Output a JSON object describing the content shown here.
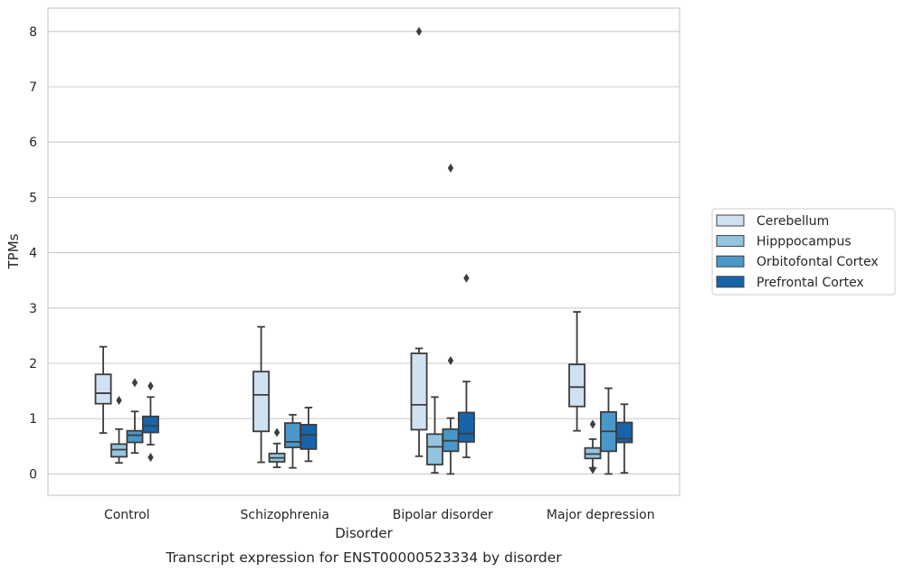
{
  "chart_data": {
    "type": "box",
    "xlabel": "Disorder",
    "ylabel": "TPMs",
    "caption": "Transcript expression for ENST00000523334 by disorder",
    "ylim": [
      -0.4,
      8.4
    ],
    "yticks": [
      0,
      1,
      2,
      3,
      4,
      5,
      6,
      7,
      8
    ],
    "grid": "horizontal",
    "legend_position": "right",
    "categories": [
      "Control",
      "Schizophrenia",
      "Bipolar disorder",
      "Major depression"
    ],
    "series": [
      {
        "name": "Cerebellum",
        "color": "#d0e1f2",
        "boxes": [
          {
            "whislo": 0.74,
            "q1": 1.27,
            "med": 1.46,
            "q3": 1.8,
            "whishi": 2.3,
            "fliers": []
          },
          {
            "whislo": 0.21,
            "q1": 0.77,
            "med": 1.43,
            "q3": 1.85,
            "whishi": 2.66,
            "fliers": []
          },
          {
            "whislo": 0.32,
            "q1": 0.8,
            "med": 1.25,
            "q3": 2.18,
            "whishi": 2.27,
            "fliers": [
              8.0
            ]
          },
          {
            "whislo": 0.78,
            "q1": 1.22,
            "med": 1.57,
            "q3": 1.98,
            "whishi": 2.93,
            "fliers": []
          }
        ]
      },
      {
        "name": "Hipppocampus",
        "color": "#94c4df",
        "boxes": [
          {
            "whislo": 0.2,
            "q1": 0.31,
            "med": 0.44,
            "q3": 0.54,
            "whishi": 0.81,
            "fliers": [
              1.33
            ]
          },
          {
            "whislo": 0.12,
            "q1": 0.22,
            "med": 0.29,
            "q3": 0.37,
            "whishi": 0.55,
            "fliers": [
              0.75
            ]
          },
          {
            "whislo": 0.02,
            "q1": 0.17,
            "med": 0.49,
            "q3": 0.72,
            "whishi": 1.39,
            "fliers": []
          },
          {
            "whislo": 0.11,
            "q1": 0.28,
            "med": 0.36,
            "q3": 0.47,
            "whishi": 0.63,
            "fliers": [
              0.08,
              0.9
            ]
          }
        ]
      },
      {
        "name": "Orbitofontal Cortex",
        "color": "#4a98c9",
        "boxes": [
          {
            "whislo": 0.38,
            "q1": 0.57,
            "med": 0.7,
            "q3": 0.78,
            "whishi": 1.13,
            "fliers": [
              1.65
            ]
          },
          {
            "whislo": 0.11,
            "q1": 0.48,
            "med": 0.58,
            "q3": 0.92,
            "whishi": 1.07,
            "fliers": []
          },
          {
            "whislo": 0.0,
            "q1": 0.41,
            "med": 0.6,
            "q3": 0.81,
            "whishi": 1.01,
            "fliers": [
              2.05,
              5.53
            ]
          },
          {
            "whislo": 0.0,
            "q1": 0.41,
            "med": 0.77,
            "q3": 1.12,
            "whishi": 1.55,
            "fliers": []
          }
        ]
      },
      {
        "name": "Prefrontal Cortex",
        "color": "#1764ab",
        "boxes": [
          {
            "whislo": 0.53,
            "q1": 0.75,
            "med": 0.87,
            "q3": 1.04,
            "whishi": 1.39,
            "fliers": [
              0.3,
              1.59
            ]
          },
          {
            "whislo": 0.23,
            "q1": 0.45,
            "med": 0.71,
            "q3": 0.89,
            "whishi": 1.2,
            "fliers": []
          },
          {
            "whislo": 0.3,
            "q1": 0.58,
            "med": 0.73,
            "q3": 1.11,
            "whishi": 1.67,
            "fliers": [
              3.54
            ]
          },
          {
            "whislo": 0.02,
            "q1": 0.57,
            "med": 0.64,
            "q3": 0.93,
            "whishi": 1.26,
            "fliers": []
          }
        ]
      }
    ]
  }
}
